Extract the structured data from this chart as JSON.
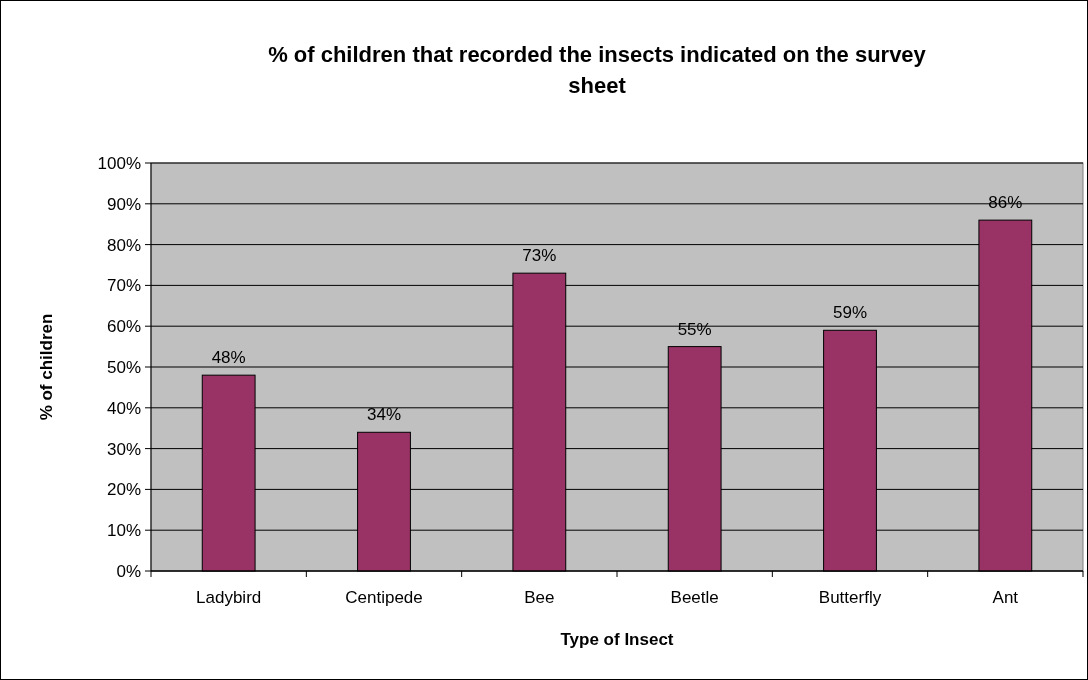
{
  "chart_data": {
    "type": "bar",
    "title": "% of children that recorded the insects indicated on the survey sheet",
    "xlabel": "Type of Insect",
    "ylabel": "% of children",
    "categories": [
      "Ladybird",
      "Centipede",
      "Bee",
      "Beetle",
      "Butterfly",
      "Ant"
    ],
    "values": [
      48,
      34,
      73,
      55,
      59,
      86
    ],
    "value_labels": [
      "48%",
      "34%",
      "73%",
      "55%",
      "59%",
      "86%"
    ],
    "color": "#993366",
    "ylim": [
      0,
      100
    ],
    "yticks": [
      {
        "value": 0,
        "label": "0%"
      },
      {
        "value": 10,
        "label": "10%"
      },
      {
        "value": 20,
        "label": "20%"
      },
      {
        "value": 30,
        "label": "30%"
      },
      {
        "value": 40,
        "label": "40%"
      },
      {
        "value": 50,
        "label": "50%"
      },
      {
        "value": 60,
        "label": "60%"
      },
      {
        "value": 70,
        "label": "70%"
      },
      {
        "value": 80,
        "label": "80%"
      },
      {
        "value": 90,
        "label": "90%"
      },
      {
        "value": 100,
        "label": "100%"
      }
    ],
    "grid": "y"
  }
}
